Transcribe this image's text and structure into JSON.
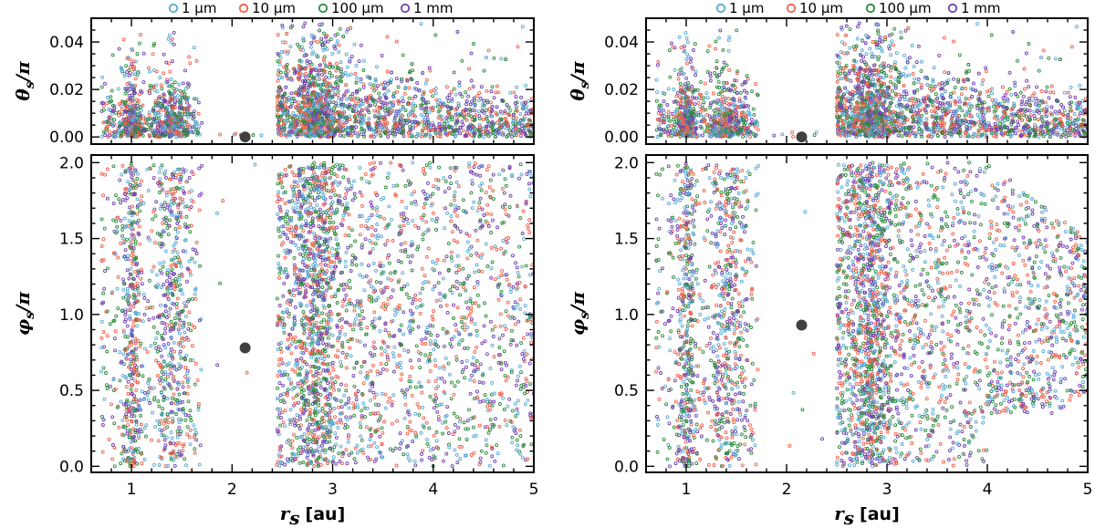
{
  "colors": {
    "1um": "#5aa9d6",
    "10um": "#f0604a",
    "100um": "#2a8a3a",
    "1mm": "#7040b0",
    "planet": "#404040"
  },
  "legend": [
    {
      "label": "1 μm",
      "color_key": "1um"
    },
    {
      "label": "10 μm",
      "color_key": "10um"
    },
    {
      "label": "100 μm",
      "color_key": "100um"
    },
    {
      "label": "1 mm",
      "color_key": "1mm"
    }
  ],
  "chart_data": [
    {
      "type": "scatter",
      "panel": "left",
      "x_label": "r",
      "x_label_sub": "s",
      "x_label_unit": "[au]",
      "x_range": [
        0.6,
        5.0
      ],
      "x_ticks": [
        "1",
        "2",
        "3",
        "4",
        "5"
      ],
      "top": {
        "y_label": "θ",
        "y_label_sub": "s",
        "y_label_den": "/π",
        "y_range": [
          -0.003,
          0.05
        ],
        "y_ticks": [
          "0.00",
          "0.02",
          "0.04"
        ],
        "planet": {
          "x": 2.13,
          "y": 0.0
        }
      },
      "bottom": {
        "y_label": "φ",
        "y_label_sub": "s",
        "y_label_den": "/π",
        "y_range": [
          -0.04,
          2.05
        ],
        "y_ticks": [
          "0.0",
          "0.5",
          "1.0",
          "1.5",
          "2.0"
        ],
        "planet": {
          "x": 2.13,
          "y": 0.78
        }
      },
      "inner_ring": [
        0.7,
        1.7
      ],
      "outer_ring": [
        2.45,
        5.0
      ],
      "outer_taper": false,
      "series": [
        {
          "name": "1 μm",
          "color_key": "1um"
        },
        {
          "name": "10 μm",
          "color_key": "10um"
        },
        {
          "name": "100 μm",
          "color_key": "100um"
        },
        {
          "name": "1 mm",
          "color_key": "1mm"
        }
      ]
    },
    {
      "type": "scatter",
      "panel": "right",
      "x_label": "r",
      "x_label_sub": "s",
      "x_label_unit": "[au]",
      "x_range": [
        0.6,
        5.0
      ],
      "x_ticks": [
        "1",
        "2",
        "3",
        "4",
        "5"
      ],
      "top": {
        "y_label": "θ",
        "y_label_sub": "s",
        "y_label_den": "/π",
        "y_range": [
          -0.003,
          0.05
        ],
        "y_ticks": [
          "0.00",
          "0.02",
          "0.04"
        ],
        "planet": {
          "x": 2.15,
          "y": 0.0
        }
      },
      "bottom": {
        "y_label": "φ",
        "y_label_sub": "s",
        "y_label_den": "/π",
        "y_range": [
          -0.04,
          2.05
        ],
        "y_ticks": [
          "0.0",
          "0.5",
          "1.0",
          "1.5",
          "2.0"
        ],
        "planet": {
          "x": 2.15,
          "y": 0.93
        }
      },
      "inner_ring": [
        0.7,
        1.72
      ],
      "outer_ring": [
        2.5,
        5.0
      ],
      "outer_taper": true,
      "series": [
        {
          "name": "1 μm",
          "color_key": "1um"
        },
        {
          "name": "10 μm",
          "color_key": "10um"
        },
        {
          "name": "100 μm",
          "color_key": "100um"
        },
        {
          "name": "1 mm",
          "color_key": "1mm"
        }
      ]
    }
  ]
}
